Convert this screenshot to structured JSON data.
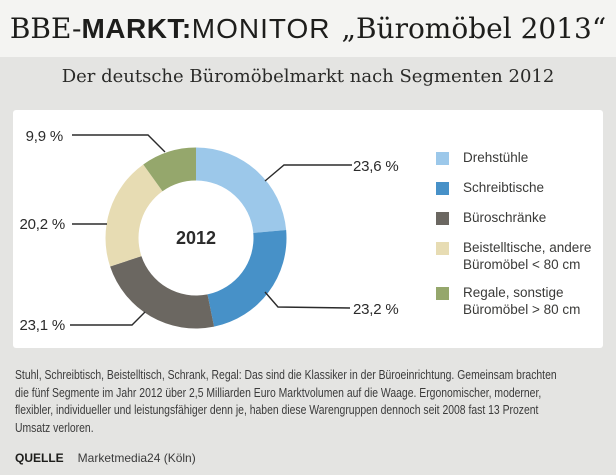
{
  "header": {
    "title_parts": {
      "serif_prefix": "BBE-",
      "bold": "MARKT:",
      "regular": "MONITOR",
      "quoted": "„Büromöbel 2013“"
    }
  },
  "subtitle": "Der deutsche Büromöbelmarkt nach Segmenten 2012",
  "chart_data": {
    "type": "pie",
    "subtype": "donut",
    "title": "Der deutsche Büromöbelmarkt nach Segmenten 2012",
    "center_label": "2012",
    "start_angle_deg": 0,
    "direction": "clockwise",
    "legend_position": "right",
    "segments": [
      {
        "label": "Drehstühle",
        "value": 23.6,
        "display": "23,6 %",
        "color": "#9CC8EA",
        "legend_lines": [
          "Drehstühle"
        ]
      },
      {
        "label": "Schreibtische",
        "value": 23.2,
        "display": "23,2 %",
        "color": "#4791C8",
        "legend_lines": [
          "Schreibtische"
        ]
      },
      {
        "label": "Büroschränke",
        "value": 23.1,
        "display": "23,1 %",
        "color": "#6B6761",
        "legend_lines": [
          "Büroschränke"
        ]
      },
      {
        "label": "Beistelltische, andere Büromöbel < 80 cm",
        "value": 20.2,
        "display": "20,2 %",
        "color": "#E7DCB3",
        "legend_lines": [
          "Beistelltische, andere",
          "Büromöbel < 80 cm"
        ]
      },
      {
        "label": "Regale, sonstige Büromöbel > 80 cm",
        "value": 9.9,
        "display": "9,9 %",
        "color": "#95A76C",
        "legend_lines": [
          "Regale, sonstige",
          "Büromöbel > 80 cm"
        ]
      }
    ]
  },
  "body": {
    "lines": [
      "Stuhl, Schreibtisch, Beistelltisch, Schrank, Regal: Das sind die Klassiker in der Büroeinrichtung. Gemeinsam brachten",
      "die fünf Segmente im Jahr 2012 über 2,5 Milliarden Euro Marktvolumen auf die Waage. Ergonomischer, moderner,",
      "flexibler, individueller und leistungsfähiger denn je, haben diese Warengruppen dennoch seit 2008 fast 13 Prozent",
      "Umsatz verloren."
    ]
  },
  "source": {
    "label": "QUELLE",
    "value": "Marketmedia24 (Köln)"
  },
  "colors": {
    "page_bg": "#e4e4e2",
    "header_bg": "#f4f4f2",
    "card_bg": "#ffffff",
    "leader_line": "#2b2b2b",
    "text": "#2b2b2b",
    "body_text": "#3b3b3b"
  }
}
